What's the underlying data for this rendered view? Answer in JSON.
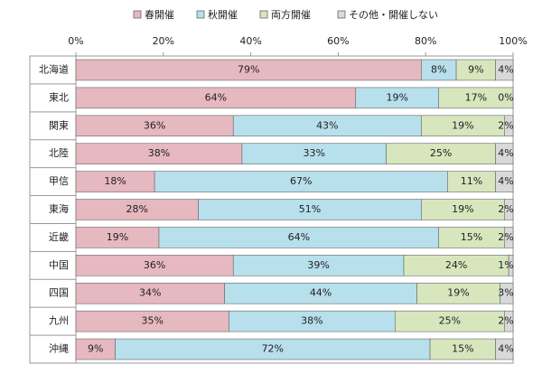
{
  "chart_data": {
    "type": "stacked-bar-horizontal",
    "categories": [
      "北海道",
      "東北",
      "関東",
      "北陸",
      "甲信",
      "東海",
      "近畿",
      "中国",
      "四国",
      "九州",
      "沖縄"
    ],
    "series": [
      {
        "name": "春開催",
        "color": "#e6b8c0",
        "values": [
          79,
          64,
          36,
          38,
          18,
          28,
          19,
          36,
          34,
          35,
          9
        ],
        "value_labels": [
          "79%",
          "64%",
          "36%",
          "38%",
          "18%",
          "28%",
          "19%",
          "36%",
          "34%",
          "35%",
          "9%"
        ]
      },
      {
        "name": "秋開催",
        "color": "#b7dfec",
        "values": [
          8,
          19,
          43,
          33,
          67,
          51,
          64,
          39,
          44,
          38,
          72
        ],
        "value_labels": [
          "8%",
          "19%",
          "43%",
          "33%",
          "67%",
          "51%",
          "64%",
          "39%",
          "44%",
          "38%",
          "72%"
        ]
      },
      {
        "name": "両方開催",
        "color": "#d8e6be",
        "values": [
          9,
          17,
          19,
          25,
          11,
          19,
          15,
          24,
          19,
          25,
          15
        ],
        "value_labels": [
          "9%",
          "17%",
          "19%",
          "25%",
          "11%",
          "19%",
          "15%",
          "24%",
          "19%",
          "25%",
          "15%"
        ]
      },
      {
        "name": "その他・開催しない",
        "color": "#d9d9d9",
        "values": [
          4,
          0,
          2,
          4,
          4,
          2,
          2,
          1,
          3,
          2,
          4
        ],
        "value_labels": [
          "4%",
          "0%",
          "2%",
          "4%",
          "4%",
          "2%",
          "2%",
          "1%",
          "3%",
          "2%",
          "4%"
        ]
      }
    ],
    "xlim": [
      0,
      100
    ],
    "xticks": [
      {
        "value": 0,
        "label": "0%"
      },
      {
        "value": 20,
        "label": "20%"
      },
      {
        "value": 40,
        "label": "40%"
      },
      {
        "value": 60,
        "label": "60%"
      },
      {
        "value": 80,
        "label": "80%"
      },
      {
        "value": 100,
        "label": "100%"
      }
    ],
    "legend": "top"
  }
}
